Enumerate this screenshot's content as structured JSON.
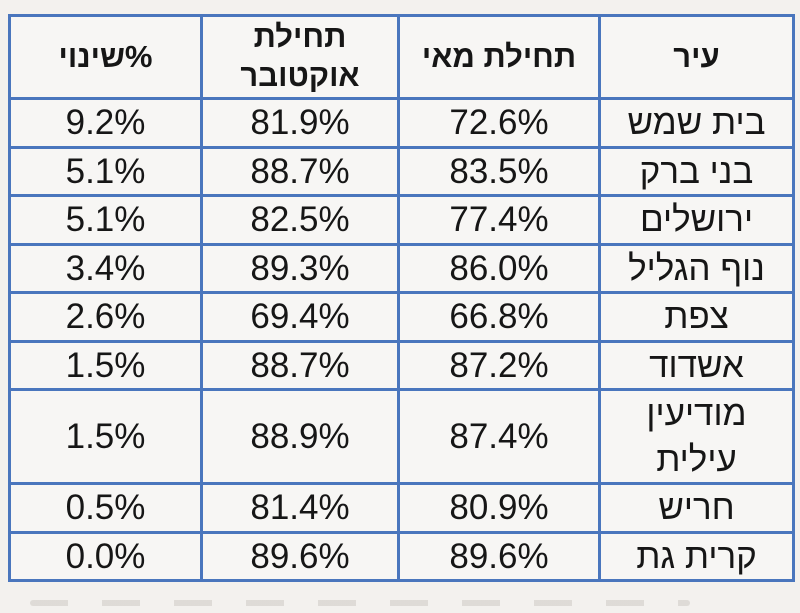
{
  "page": {
    "background": "#f3f1ee",
    "direction": "rtl"
  },
  "colors": {
    "table_border": "#4a76bd",
    "cell_background": "#f7f6f4",
    "text": "#161616"
  },
  "display": {
    "headers": {
      "city": "עיר",
      "may": "תחילת מאי",
      "october": "תחילת\nאוקטובר",
      "change": "%שינוי"
    },
    "rows": [
      {
        "city": "בית שמש",
        "may": "72.6%",
        "october": "81.9%",
        "change": "9.2%"
      },
      {
        "city": "בני ברק",
        "may": "83.5%",
        "october": "88.7%",
        "change": "5.1%"
      },
      {
        "city": "ירושלים",
        "may": "77.4%",
        "october": "82.5%",
        "change": "5.1%"
      },
      {
        "city": "נוף הגליל",
        "may": "86.0%",
        "october": "89.3%",
        "change": "3.4%"
      },
      {
        "city": "צפת",
        "may": "66.8%",
        "october": "69.4%",
        "change": "2.6%"
      },
      {
        "city": "אשדוד",
        "may": "87.2%",
        "october": "88.7%",
        "change": "1.5%"
      },
      {
        "city": "מודיעין\nעילית",
        "may": "87.4%",
        "october": "88.9%",
        "change": "1.5%"
      },
      {
        "city": "חריש",
        "may": "80.9%",
        "october": "81.4%",
        "change": "0.5%"
      },
      {
        "city": "קרית גת",
        "may": "89.6%",
        "october": "89.6%",
        "change": "0.0%"
      }
    ]
  },
  "chart_data": {
    "type": "table",
    "direction": "rtl",
    "columns": [
      "עיר",
      "תחילת מאי",
      "תחילת אוקטובר",
      "%שינוי"
    ],
    "rows": [
      [
        "בית שמש",
        "72.6%",
        "81.9%",
        "9.2%"
      ],
      [
        "בני ברק",
        "83.5%",
        "88.7%",
        "5.1%"
      ],
      [
        "ירושלים",
        "77.4%",
        "82.5%",
        "5.1%"
      ],
      [
        "נוף הגליל",
        "86.0%",
        "89.3%",
        "3.4%"
      ],
      [
        "צפת",
        "66.8%",
        "69.4%",
        "2.6%"
      ],
      [
        "אשדוד",
        "87.2%",
        "88.7%",
        "1.5%"
      ],
      [
        "מודיעין עילית",
        "87.4%",
        "88.9%",
        "1.5%"
      ],
      [
        "חריש",
        "80.9%",
        "81.4%",
        "0.5%"
      ],
      [
        "קרית גת",
        "89.6%",
        "89.6%",
        "0.0%"
      ]
    ],
    "numeric": {
      "cities": [
        "בית שמש",
        "בני ברק",
        "ירושלים",
        "נוף הגליל",
        "צפת",
        "אשדוד",
        "מודיעין עילית",
        "חריש",
        "קרית גת"
      ],
      "may_percent": [
        72.6,
        83.5,
        77.4,
        86.0,
        66.8,
        87.2,
        87.4,
        80.9,
        89.6
      ],
      "october_percent": [
        81.9,
        88.7,
        82.5,
        89.3,
        69.4,
        88.7,
        88.9,
        81.4,
        89.6
      ],
      "change_percent": [
        9.2,
        5.1,
        5.1,
        3.4,
        2.6,
        1.5,
        1.5,
        0.5,
        0.0
      ]
    },
    "layout": {
      "header_row_bold": true,
      "grid": true,
      "sorted_by": "change_percent desc"
    }
  }
}
